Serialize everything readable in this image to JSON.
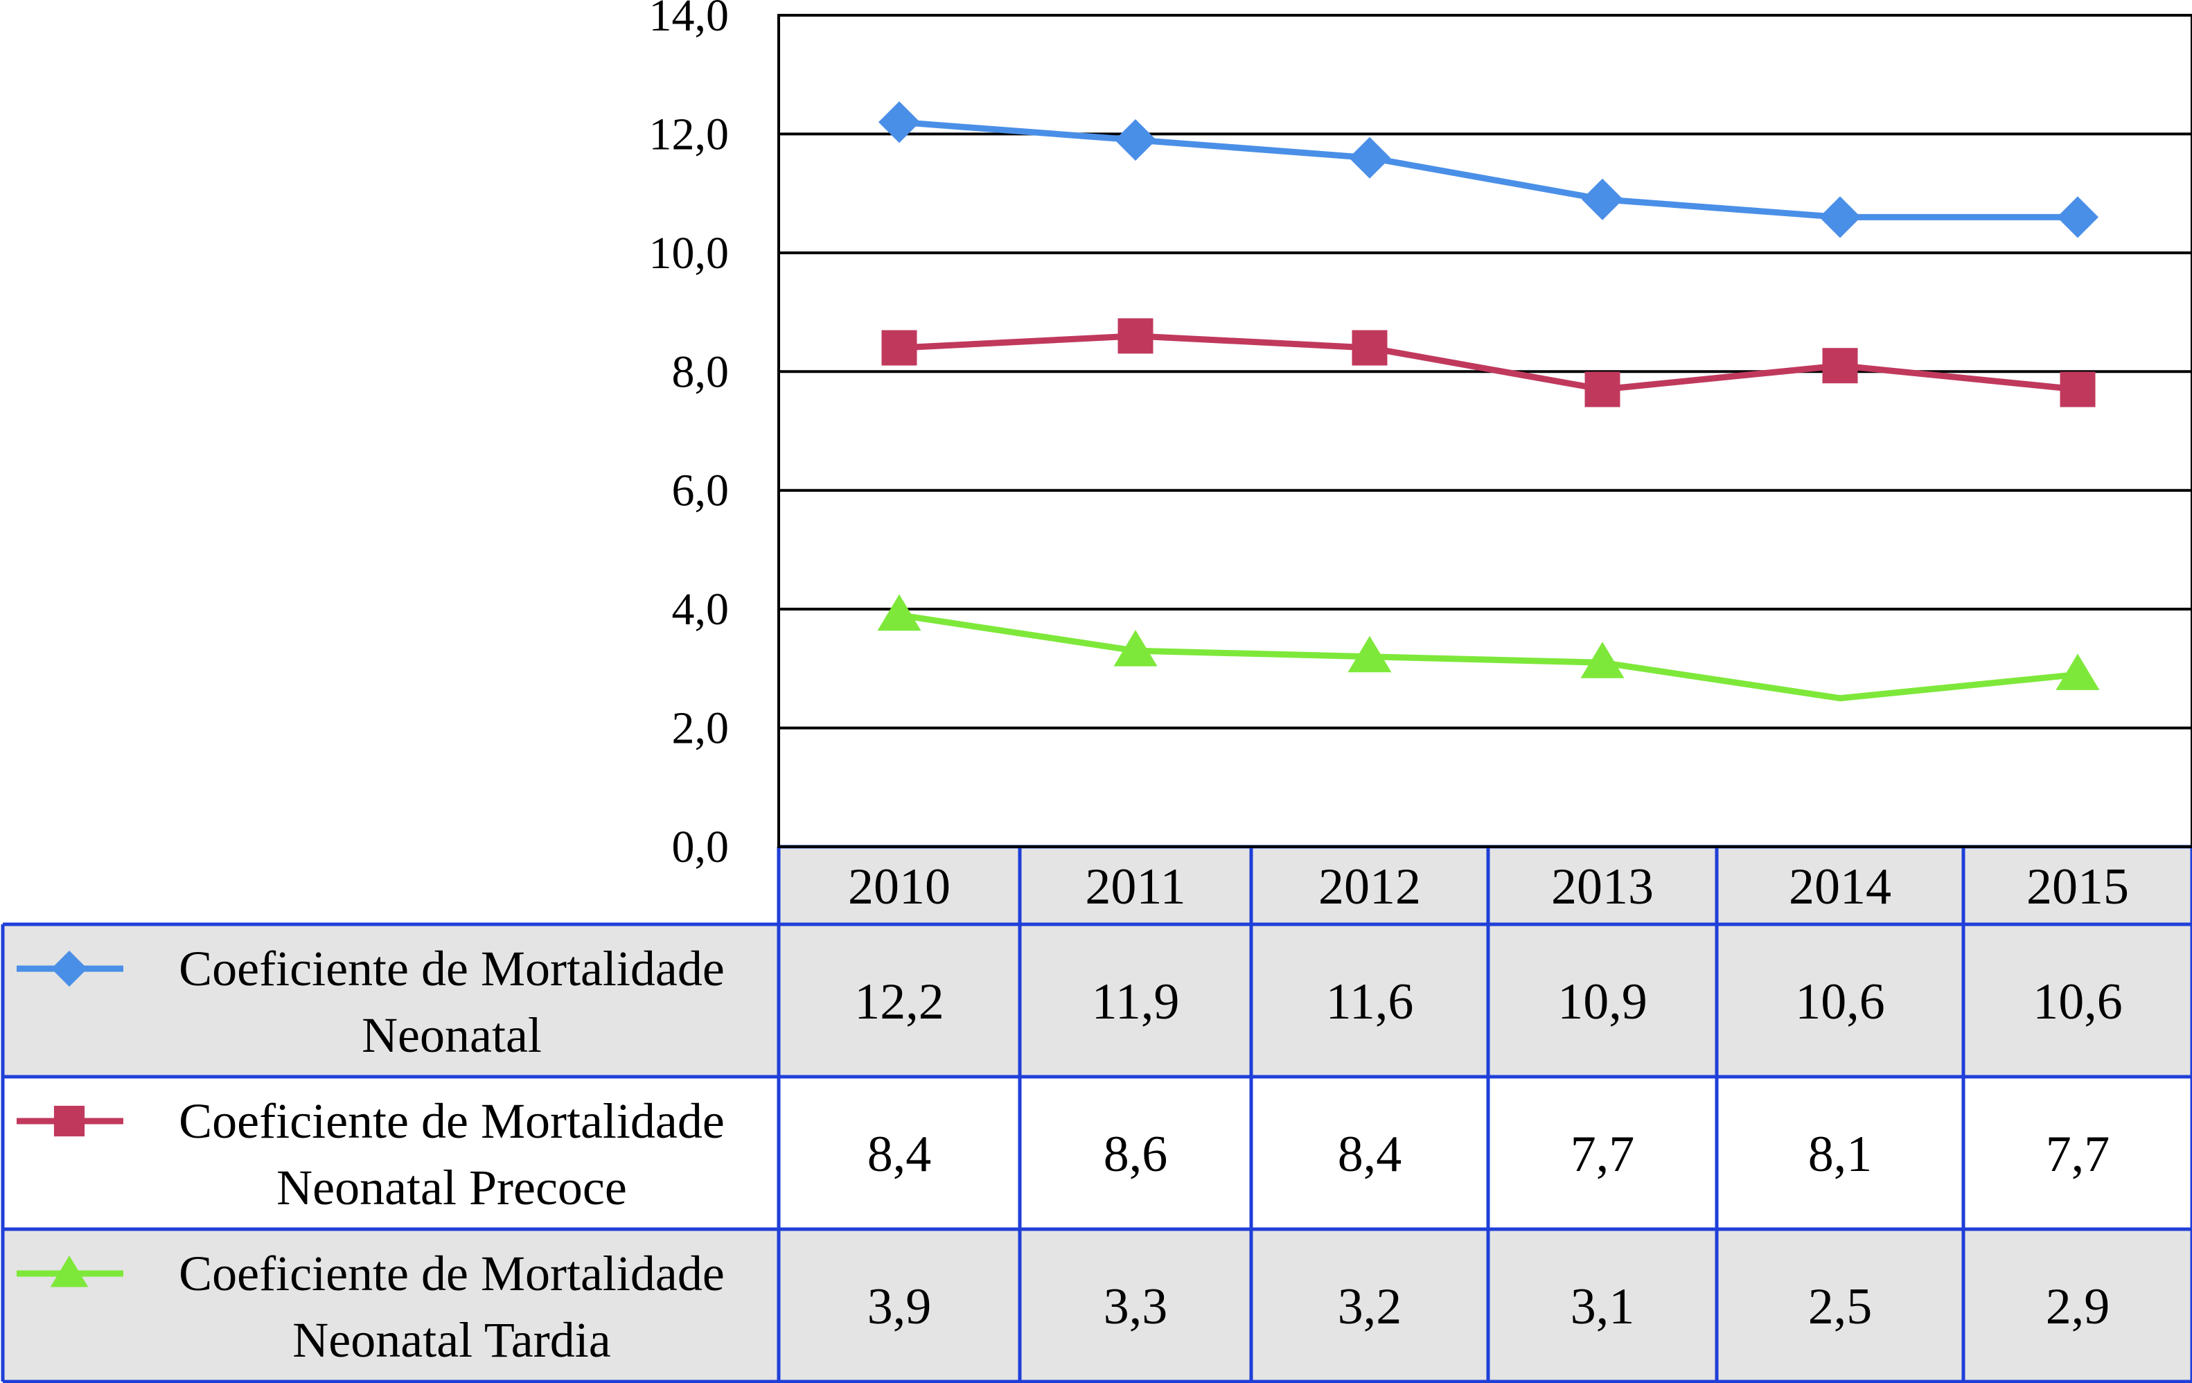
{
  "chart_data": {
    "type": "line",
    "categories": [
      "2010",
      "2011",
      "2012",
      "2013",
      "2014",
      "2015"
    ],
    "ylim": [
      0,
      14
    ],
    "yticks": [
      "0,0",
      "2,0",
      "4,0",
      "6,0",
      "8,0",
      "10,0",
      "12,0",
      "14,0"
    ],
    "grid": true,
    "legend": "data table, left",
    "series": [
      {
        "name_lines": [
          "Coeficiente de Mortalidade",
          "Neonatal"
        ],
        "values": [
          12.2,
          11.9,
          11.6,
          10.9,
          10.6,
          10.6
        ],
        "labels": [
          "12,2",
          "11,9",
          "11,6",
          "10,9",
          "10,6",
          "10,6"
        ],
        "color": "#4a8fe7",
        "marker": "diamond"
      },
      {
        "name_lines": [
          "Coeficiente de Mortalidade",
          "Neonatal Precoce"
        ],
        "values": [
          8.4,
          8.6,
          8.4,
          7.7,
          8.1,
          7.7
        ],
        "labels": [
          "8,4",
          "8,6",
          "8,4",
          "7,7",
          "8,1",
          "7,7"
        ],
        "color": "#c0395d",
        "marker": "square"
      },
      {
        "name_lines": [
          "Coeficiente de Mortalidade",
          "Neonatal Tardia"
        ],
        "values": [
          3.9,
          3.3,
          3.2,
          3.1,
          2.5,
          2.9
        ],
        "labels": [
          "3,9",
          "3,3",
          "3,2",
          "3,1",
          "2,5",
          "2,9"
        ],
        "color": "#7ee83a",
        "marker": "triangle"
      }
    ]
  },
  "table_style": {
    "border_color": "#1f3fd8",
    "shaded_fill": "#e4e4e4",
    "plain_fill": "#ffffff"
  }
}
